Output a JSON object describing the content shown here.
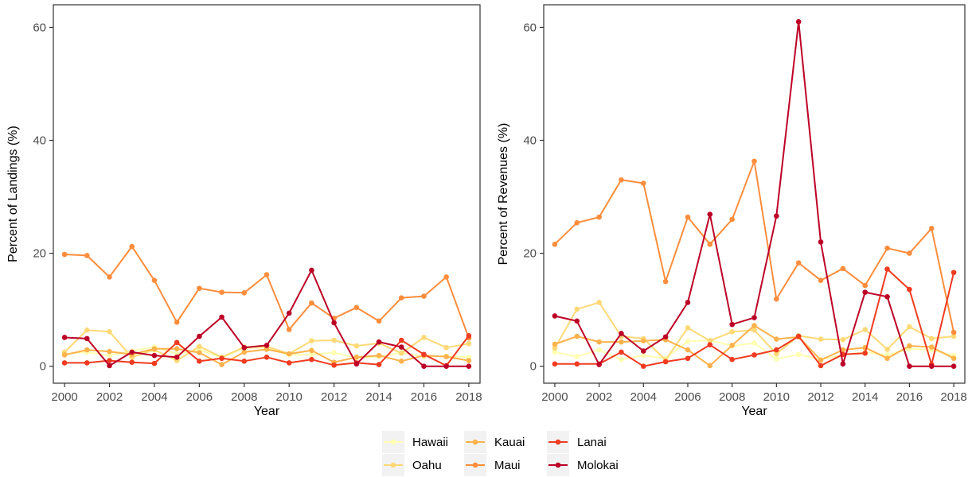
{
  "chart_data": [
    {
      "type": "line",
      "title": "",
      "xlabel": "Year",
      "ylabel": "Percent of Landings (%)",
      "xlim": [
        1999.5,
        2018.5
      ],
      "ylim": [
        -3,
        64
      ],
      "xticks": [
        2000,
        2002,
        2004,
        2006,
        2008,
        2010,
        2012,
        2014,
        2016,
        2018
      ],
      "xtick_labels": [
        "2000",
        "2002",
        "2004",
        "2006",
        "2008",
        "2010",
        "2012",
        "2014",
        "2016",
        "2018"
      ],
      "yticks": [
        0,
        20,
        40,
        60
      ],
      "ytick_labels": [
        "0",
        "20",
        "40",
        "60"
      ],
      "grid": false,
      "x": [
        2000,
        2001,
        2002,
        2003,
        2004,
        2005,
        2006,
        2007,
        2008,
        2009,
        2010,
        2011,
        2012,
        2013,
        2014,
        2015,
        2016,
        2017,
        2018
      ],
      "series": [
        {
          "name": "Hawaii",
          "color": "#ffffb2",
          "values": [
            2.2,
            2.5,
            1.9,
            2.7,
            3.4,
            2.2,
            2.9,
            1.5,
            3.2,
            3.3,
            2.0,
            2.1,
            2.4,
            1.5,
            1.7,
            2.4,
            1.7,
            1.8,
            1.6
          ]
        },
        {
          "name": "Oahu",
          "color": "#fed976",
          "values": [
            2.5,
            6.4,
            6.1,
            1.6,
            2.9,
            1.0,
            3.5,
            1.6,
            3.4,
            3.5,
            2.2,
            4.5,
            4.6,
            3.6,
            4.1,
            2.3,
            5.1,
            3.3,
            4.0
          ]
        },
        {
          "name": "Kauai",
          "color": "#feb24c",
          "values": [
            2.0,
            2.9,
            2.6,
            2.1,
            3.1,
            3.1,
            2.4,
            0.3,
            2.5,
            3.0,
            2.2,
            2.8,
            0.7,
            1.6,
            1.9,
            0.9,
            1.9,
            1.7,
            1.0
          ]
        },
        {
          "name": "Maui",
          "color": "#fd8d3c",
          "values": [
            19.8,
            19.6,
            15.8,
            21.2,
            15.2,
            7.8,
            13.8,
            13.1,
            13.0,
            16.2,
            6.5,
            11.2,
            8.5,
            10.4,
            8.0,
            12.1,
            12.4,
            15.8,
            5.0
          ]
        },
        {
          "name": "Lanai",
          "color": "#f03b20",
          "values": [
            0.6,
            0.6,
            1.0,
            0.7,
            0.5,
            4.2,
            0.9,
            1.4,
            0.9,
            1.6,
            0.6,
            1.2,
            0.2,
            0.6,
            0.3,
            4.6,
            2.1,
            0.1,
            5.4
          ]
        },
        {
          "name": "Molokai",
          "color": "#bd0026",
          "values": [
            5.1,
            4.9,
            0.1,
            2.5,
            1.9,
            1.6,
            5.3,
            8.7,
            3.3,
            3.7,
            9.4,
            17.0,
            7.7,
            0.4,
            4.3,
            3.4,
            0.0,
            0.0,
            0.0
          ]
        }
      ]
    },
    {
      "type": "line",
      "title": "",
      "xlabel": "Year",
      "ylabel": "Percent of Revenues (%)",
      "xlim": [
        1999.5,
        2018.5
      ],
      "ylim": [
        -3,
        64
      ],
      "xticks": [
        2000,
        2002,
        2004,
        2006,
        2008,
        2010,
        2012,
        2014,
        2016,
        2018
      ],
      "xtick_labels": [
        "2000",
        "2002",
        "2004",
        "2006",
        "2008",
        "2010",
        "2012",
        "2014",
        "2016",
        "2018"
      ],
      "yticks": [
        0,
        20,
        40,
        60
      ],
      "ytick_labels": [
        "0",
        "20",
        "40",
        "60"
      ],
      "grid": false,
      "x": [
        2000,
        2001,
        2002,
        2003,
        2004,
        2005,
        2006,
        2007,
        2008,
        2009,
        2010,
        2011,
        2012,
        2013,
        2014,
        2015,
        2016,
        2017,
        2018
      ],
      "series": [
        {
          "name": "Hawaii",
          "color": "#ffffb2",
          "values": [
            2.5,
            1.7,
            2.9,
            1.2,
            1.9,
            1.4,
            4.4,
            4.6,
            3.6,
            4.1,
            1.3,
            2.1,
            1.2,
            2.0,
            2.5,
            2.0,
            3.1,
            2.9,
            1.9
          ]
        },
        {
          "name": "Oahu",
          "color": "#fed976",
          "values": [
            3.2,
            10.1,
            11.3,
            5.3,
            4.9,
            1.1,
            6.8,
            4.5,
            6.1,
            6.4,
            2.2,
            5.4,
            4.8,
            4.7,
            6.5,
            3.0,
            7.0,
            4.9,
            5.3
          ]
        },
        {
          "name": "Kauai",
          "color": "#feb24c",
          "values": [
            3.9,
            5.3,
            4.3,
            4.3,
            4.5,
            4.7,
            2.9,
            0.1,
            3.7,
            7.2,
            4.8,
            5.2,
            1.1,
            2.9,
            3.3,
            1.4,
            3.6,
            3.4,
            1.4
          ]
        },
        {
          "name": "Maui",
          "color": "#fd8d3c",
          "values": [
            21.6,
            25.4,
            26.4,
            33.0,
            32.4,
            15.0,
            26.4,
            21.6,
            26.0,
            36.3,
            11.9,
            18.3,
            15.2,
            17.3,
            14.3,
            20.9,
            20.0,
            24.4,
            6.0
          ]
        },
        {
          "name": "Lanai",
          "color": "#f03b20",
          "values": [
            0.4,
            0.4,
            0.4,
            2.5,
            0.0,
            0.8,
            1.4,
            3.8,
            1.2,
            2.0,
            2.9,
            5.3,
            0.1,
            2.1,
            2.3,
            17.2,
            13.6,
            0.3,
            16.6
          ]
        },
        {
          "name": "Molokai",
          "color": "#bd0026",
          "values": [
            8.9,
            8.0,
            0.3,
            5.8,
            2.7,
            5.2,
            11.3,
            26.9,
            7.4,
            8.6,
            26.6,
            61.0,
            22.0,
            0.4,
            13.1,
            12.3,
            0.0,
            0.0,
            0.0
          ]
        }
      ]
    }
  ],
  "legend": {
    "position": "bottom",
    "items": [
      {
        "name": "Hawaii",
        "color": "#ffffb2"
      },
      {
        "name": "Kauai",
        "color": "#feb24c"
      },
      {
        "name": "Lanai",
        "color": "#f03b20"
      },
      {
        "name": "Oahu",
        "color": "#fed976"
      },
      {
        "name": "Maui",
        "color": "#fd8d3c"
      },
      {
        "name": "Molokai",
        "color": "#bd0026"
      }
    ]
  }
}
